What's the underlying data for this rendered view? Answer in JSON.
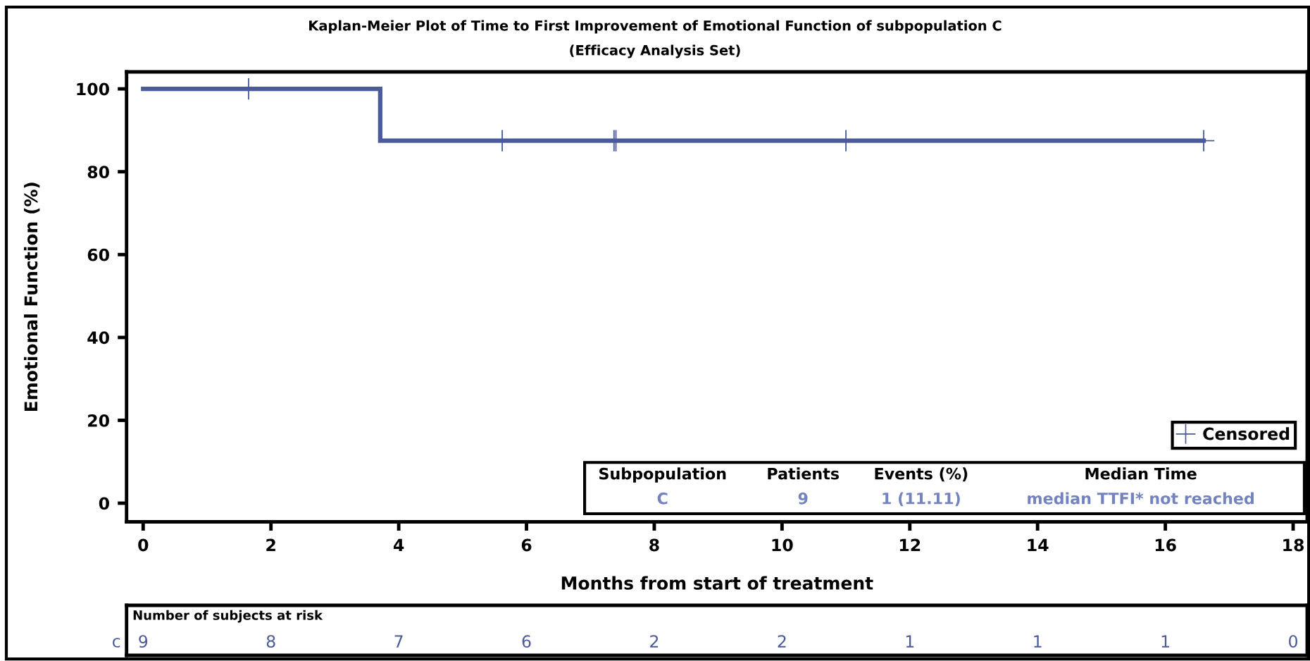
{
  "chart_data": {
    "type": "step",
    "title": "Kaplan-Meier Plot of Time to First Improvement of Emotional Function of subpopulation C",
    "subtitle": "(Efficacy Analysis Set)",
    "xlabel": "Months from start of treatment",
    "ylabel": "Emotional Function (%)",
    "series": [
      {
        "color": "#4a5a9a",
        "x": [
          0,
          3.71,
          16.6
        ],
        "values": [
          100,
          87.5,
          87.5
        ]
      },
      {
        "type": "scatter",
        "name": "Censored",
        "color": "#4a5a9a",
        "marker": "cross",
        "x": [
          1.65,
          5.62,
          7.37,
          7.4,
          11.0,
          16.6
        ],
        "values": [
          100,
          87.5,
          87.5,
          87.5,
          87.5,
          87.5
        ]
      }
    ],
    "xlim": [
      -0.26,
      18.22
    ],
    "xticks": [
      0,
      2,
      4,
      6,
      8,
      10,
      12,
      14,
      16,
      18
    ],
    "ylim": [
      -4.5,
      104.1
    ],
    "yticks": [
      0,
      20,
      40,
      60,
      80,
      100
    ],
    "grid": false,
    "legend": "bottom right",
    "annotations": [
      "Subpopulation",
      "Patients",
      "Events (%)",
      "Median Time",
      "C",
      "9",
      "1 (11.11)",
      "median TTFI* not reached",
      "Number of subjects at risk",
      "c",
      "9",
      "8",
      "7",
      "6",
      "2",
      "2",
      "1",
      "1",
      "1",
      "0"
    ]
  }
}
